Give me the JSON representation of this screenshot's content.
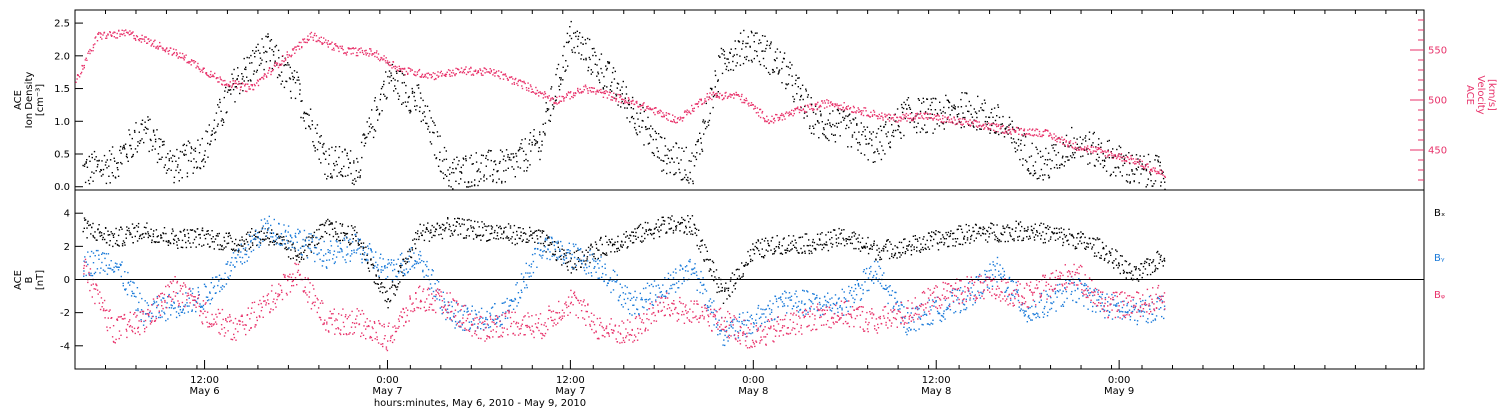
{
  "footer_label": "hours:minutes, May  6, 2010 - May  9, 2010",
  "colors": {
    "black": "#000000",
    "pink": "#e8336b",
    "blue": "#1a7ad9"
  },
  "time_axis": {
    "domain": [
      "2010-05-06 03:30",
      "2010-05-09 20:00"
    ],
    "ticks": [
      {
        "time": "2010-05-06 12:00",
        "line1": "12:00",
        "line2": "May 6"
      },
      {
        "time": "2010-05-07 00:00",
        "line1": "0:00",
        "line2": "May 7"
      },
      {
        "time": "2010-05-07 12:00",
        "line1": "12:00",
        "line2": "May 7"
      },
      {
        "time": "2010-05-08 00:00",
        "line1": "0:00",
        "line2": "May 8"
      },
      {
        "time": "2010-05-08 12:00",
        "line1": "12:00",
        "line2": "May 8"
      },
      {
        "time": "2010-05-09 00:00",
        "line1": "0:00",
        "line2": "May 9"
      }
    ]
  },
  "top_panel": {
    "left_label_lines": [
      "ACE",
      "Ion Density",
      "[cm⁻³]"
    ],
    "right_label_lines": [
      "ACE",
      "Velocity",
      "[km/s]"
    ],
    "left_ticks": [
      "0.0",
      "0.5",
      "1.0",
      "1.5",
      "2.0",
      "2.5"
    ],
    "right_ticks": [
      "450",
      "500",
      "550"
    ]
  },
  "bottom_panel": {
    "left_label_lines": [
      "ACE",
      "B",
      "[nT]"
    ],
    "left_ticks": [
      "-4",
      "-2",
      "0",
      "2",
      "4"
    ],
    "legend": [
      {
        "name": "Bₓ",
        "color": "#000000"
      },
      {
        "name": "Bᵧ",
        "color": "#1a7ad9"
      },
      {
        "name": "Bᵩ",
        "color": "#e8336b"
      }
    ]
  },
  "chart_data": [
    {
      "type": "scatter",
      "title": "",
      "ylabel": "ACE Ion Density [cm⁻³]",
      "ylim": [
        -0.05,
        2.7
      ],
      "y2label": "ACE Velocity [km/s]",
      "y2lim": [
        410,
        590
      ],
      "x_type": "time",
      "grid": false,
      "series": [
        {
          "color": "#000000",
          "axis": "left",
          "points": [
            [
              "2010-05-06 04:00",
              0.25
            ],
            [
              "2010-05-06 06:00",
              0.35
            ],
            [
              "2010-05-06 08:00",
              0.9
            ],
            [
              "2010-05-06 10:00",
              0.3
            ],
            [
              "2010-05-06 12:00",
              0.6
            ],
            [
              "2010-05-06 14:00",
              1.6
            ],
            [
              "2010-05-06 16:00",
              2.1
            ],
            [
              "2010-05-06 18:00",
              1.5
            ],
            [
              "2010-05-06 20:00",
              0.4
            ],
            [
              "2010-05-06 22:00",
              0.3
            ],
            [
              "2010-05-07 00:00",
              1.7
            ],
            [
              "2010-05-07 02:00",
              1.3
            ],
            [
              "2010-05-07 04:00",
              0.2
            ],
            [
              "2010-05-07 06:00",
              0.3
            ],
            [
              "2010-05-07 08:00",
              0.3
            ],
            [
              "2010-05-07 10:00",
              0.7
            ],
            [
              "2010-05-07 12:00",
              2.3
            ],
            [
              "2010-05-07 14:00",
              1.8
            ],
            [
              "2010-05-07 16:00",
              1.2
            ],
            [
              "2010-05-07 18:00",
              0.5
            ],
            [
              "2010-05-07 20:00",
              0.3
            ],
            [
              "2010-05-07 22:00",
              2.0
            ],
            [
              "2010-05-08 00:00",
              2.2
            ],
            [
              "2010-05-08 02:00",
              1.8
            ],
            [
              "2010-05-08 04:00",
              1.0
            ],
            [
              "2010-05-08 06:00",
              0.9
            ],
            [
              "2010-05-08 08:00",
              0.6
            ],
            [
              "2010-05-08 10:00",
              1.1
            ],
            [
              "2010-05-08 12:00",
              1.1
            ],
            [
              "2010-05-08 14:00",
              1.2
            ],
            [
              "2010-05-08 16:00",
              1.0
            ],
            [
              "2010-05-08 18:00",
              0.5
            ],
            [
              "2010-05-08 19:00",
              0.3
            ],
            [
              "2010-05-08 21:00",
              0.7
            ],
            [
              "2010-05-08 23:00",
              0.5
            ],
            [
              "2010-05-09 01:00",
              0.25
            ],
            [
              "2010-05-09 03:00",
              0.2
            ]
          ]
        },
        {
          "color": "#e8336b",
          "axis": "right",
          "points": [
            [
              "2010-05-06 03:30",
              520
            ],
            [
              "2010-05-06 05:00",
              565
            ],
            [
              "2010-05-06 07:00",
              567
            ],
            [
              "2010-05-06 09:00",
              555
            ],
            [
              "2010-05-06 11:00",
              540
            ],
            [
              "2010-05-06 13:00",
              520
            ],
            [
              "2010-05-06 15:00",
              512
            ],
            [
              "2010-05-06 17:00",
              540
            ],
            [
              "2010-05-06 19:00",
              565
            ],
            [
              "2010-05-06 21:00",
              550
            ],
            [
              "2010-05-06 23:00",
              548
            ],
            [
              "2010-05-07 01:00",
              530
            ],
            [
              "2010-05-07 03:00",
              525
            ],
            [
              "2010-05-07 05:00",
              530
            ],
            [
              "2010-05-07 07:00",
              528
            ],
            [
              "2010-05-07 09:00",
              515
            ],
            [
              "2010-05-07 11:00",
              500
            ],
            [
              "2010-05-07 13:00",
              512
            ],
            [
              "2010-05-07 15:00",
              503
            ],
            [
              "2010-05-07 17:00",
              493
            ],
            [
              "2010-05-07 19:00",
              480
            ],
            [
              "2010-05-07 21:00",
              505
            ],
            [
              "2010-05-07 23:00",
              505
            ],
            [
              "2010-05-08 01:00",
              480
            ],
            [
              "2010-05-08 03:00",
              490
            ],
            [
              "2010-05-08 05:00",
              498
            ],
            [
              "2010-05-08 07:00",
              490
            ],
            [
              "2010-05-08 09:00",
              482
            ],
            [
              "2010-05-08 11:00",
              485
            ],
            [
              "2010-05-08 13:00",
              480
            ],
            [
              "2010-05-08 15:00",
              475
            ],
            [
              "2010-05-08 17:00",
              470
            ],
            [
              "2010-05-08 19:00",
              468
            ],
            [
              "2010-05-08 21:00",
              455
            ],
            [
              "2010-05-08 23:00",
              448
            ],
            [
              "2010-05-09 01:00",
              440
            ],
            [
              "2010-05-09 03:00",
              425
            ]
          ]
        }
      ]
    },
    {
      "type": "scatter",
      "title": "",
      "ylabel": "ACE B [nT]",
      "ylim": [
        -5.4,
        5.4
      ],
      "x_type": "time",
      "grid": false,
      "reference_line": 0,
      "series": [
        {
          "name": "Bₓ",
          "color": "#000000",
          "points": [
            [
              "2010-05-06 04:00",
              3.2
            ],
            [
              "2010-05-06 06:00",
              2.5
            ],
            [
              "2010-05-06 08:00",
              3.0
            ],
            [
              "2010-05-06 10:00",
              2.5
            ],
            [
              "2010-05-06 12:00",
              2.6
            ],
            [
              "2010-05-06 14:00",
              2.2
            ],
            [
              "2010-05-06 16:00",
              2.8
            ],
            [
              "2010-05-06 18:00",
              1.5
            ],
            [
              "2010-05-06 20:00",
              3.1
            ],
            [
              "2010-05-06 22:00",
              2.6
            ],
            [
              "2010-05-07 00:00",
              -1.3
            ],
            [
              "2010-05-07 02:00",
              2.8
            ],
            [
              "2010-05-07 04:00",
              3.2
            ],
            [
              "2010-05-07 06:00",
              3.0
            ],
            [
              "2010-05-07 08:00",
              2.8
            ],
            [
              "2010-05-07 10:00",
              2.5
            ],
            [
              "2010-05-07 12:00",
              1.0
            ],
            [
              "2010-05-07 14:00",
              2.0
            ],
            [
              "2010-05-07 16:00",
              2.6
            ],
            [
              "2010-05-07 18:00",
              3.3
            ],
            [
              "2010-05-07 20:00",
              3.3
            ],
            [
              "2010-05-07 22:00",
              -1.0
            ],
            [
              "2010-05-08 00:00",
              1.8
            ],
            [
              "2010-05-08 02:00",
              2.2
            ],
            [
              "2010-05-08 04:00",
              2.2
            ],
            [
              "2010-05-08 06:00",
              2.6
            ],
            [
              "2010-05-08 08:00",
              1.8
            ],
            [
              "2010-05-08 10:00",
              2.0
            ],
            [
              "2010-05-08 12:00",
              2.4
            ],
            [
              "2010-05-08 14:00",
              2.8
            ],
            [
              "2010-05-08 16:00",
              2.9
            ],
            [
              "2010-05-08 18:00",
              3.0
            ],
            [
              "2010-05-08 21:00",
              2.5
            ],
            [
              "2010-05-08 23:00",
              1.8
            ],
            [
              "2010-05-09 01:00",
              0.2
            ],
            [
              "2010-05-09 03:00",
              1.5
            ]
          ]
        },
        {
          "name": "Bᵧ",
          "color": "#1a7ad9",
          "points": [
            [
              "2010-05-06 04:00",
              1.0
            ],
            [
              "2010-05-06 06:00",
              1.2
            ],
            [
              "2010-05-06 08:00",
              -2.0
            ],
            [
              "2010-05-06 10:00",
              -1.5
            ],
            [
              "2010-05-06 12:00",
              -1.0
            ],
            [
              "2010-05-06 14:00",
              1.0
            ],
            [
              "2010-05-06 16:00",
              3.2
            ],
            [
              "2010-05-06 18:00",
              2.5
            ],
            [
              "2010-05-06 20:00",
              1.5
            ],
            [
              "2010-05-06 22:00",
              2.0
            ],
            [
              "2010-05-07 00:00",
              0.5
            ],
            [
              "2010-05-07 02:00",
              1.5
            ],
            [
              "2010-05-07 04:00",
              -2.0
            ],
            [
              "2010-05-07 06:00",
              -2.5
            ],
            [
              "2010-05-07 08:00",
              -1.8
            ],
            [
              "2010-05-07 10:00",
              2.0
            ],
            [
              "2010-05-07 12:00",
              1.5
            ],
            [
              "2010-05-07 14:00",
              0.8
            ],
            [
              "2010-05-07 16:00",
              -1.5
            ],
            [
              "2010-05-07 18:00",
              -0.5
            ],
            [
              "2010-05-07 20:00",
              0.8
            ],
            [
              "2010-05-07 22:00",
              -3.2
            ],
            [
              "2010-05-08 00:00",
              -2.5
            ],
            [
              "2010-05-08 02:00",
              -1.2
            ],
            [
              "2010-05-08 04:00",
              -1.5
            ],
            [
              "2010-05-08 06:00",
              -1.3
            ],
            [
              "2010-05-08 08:00",
              0.5
            ],
            [
              "2010-05-08 10:00",
              -2.5
            ],
            [
              "2010-05-08 12:00",
              -1.8
            ],
            [
              "2010-05-08 14:00",
              -1.0
            ],
            [
              "2010-05-08 16:00",
              0.6
            ],
            [
              "2010-05-08 18:00",
              -2.0
            ],
            [
              "2010-05-08 21:00",
              -0.5
            ],
            [
              "2010-05-08 23:00",
              -1.5
            ],
            [
              "2010-05-09 01:00",
              -2.0
            ],
            [
              "2010-05-09 03:00",
              -1.5
            ]
          ]
        },
        {
          "name": "Bᵩ",
          "color": "#e8336b",
          "points": [
            [
              "2010-05-06 04:00",
              0.8
            ],
            [
              "2010-05-06 06:00",
              -3.0
            ],
            [
              "2010-05-06 08:00",
              -2.5
            ],
            [
              "2010-05-06 10:00",
              -0.5
            ],
            [
              "2010-05-06 12:00",
              -2.0
            ],
            [
              "2010-05-06 14:00",
              -3.0
            ],
            [
              "2010-05-06 16:00",
              -1.5
            ],
            [
              "2010-05-06 18:00",
              0.5
            ],
            [
              "2010-05-06 20:00",
              -2.5
            ],
            [
              "2010-05-06 22:00",
              -2.5
            ],
            [
              "2010-05-07 00:00",
              -3.5
            ],
            [
              "2010-05-07 02:00",
              -1.0
            ],
            [
              "2010-05-07 04:00",
              -1.5
            ],
            [
              "2010-05-07 06:00",
              -3.0
            ],
            [
              "2010-05-07 08:00",
              -2.5
            ],
            [
              "2010-05-07 10:00",
              -2.8
            ],
            [
              "2010-05-07 12:00",
              -1.2
            ],
            [
              "2010-05-07 14:00",
              -3.0
            ],
            [
              "2010-05-07 16:00",
              -3.2
            ],
            [
              "2010-05-07 18:00",
              -1.5
            ],
            [
              "2010-05-07 20:00",
              -2.0
            ],
            [
              "2010-05-07 22:00",
              -2.5
            ],
            [
              "2010-05-08 00:00",
              -3.5
            ],
            [
              "2010-05-08 02:00",
              -2.8
            ],
            [
              "2010-05-08 04:00",
              -2.2
            ],
            [
              "2010-05-08 06:00",
              -2.0
            ],
            [
              "2010-05-08 08:00",
              -2.5
            ],
            [
              "2010-05-08 10:00",
              -2.0
            ],
            [
              "2010-05-08 12:00",
              -1.0
            ],
            [
              "2010-05-08 14:00",
              -0.5
            ],
            [
              "2010-05-08 16:00",
              -0.6
            ],
            [
              "2010-05-08 18:00",
              -1.0
            ],
            [
              "2010-05-08 21:00",
              0.5
            ],
            [
              "2010-05-08 23:00",
              -1.5
            ],
            [
              "2010-05-09 01:00",
              -1.5
            ],
            [
              "2010-05-09 03:00",
              -1.0
            ]
          ]
        }
      ]
    }
  ]
}
